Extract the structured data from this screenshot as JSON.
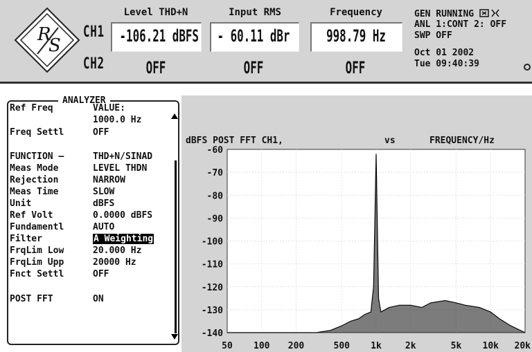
{
  "header": {
    "ch1_label": "CH1",
    "ch2_label": "CH2",
    "meas1": {
      "head": "Level THD+N",
      "ch1": "-106.21 dBFS",
      "ch2": "OFF"
    },
    "meas2": {
      "head": "Input RMS",
      "ch1": "- 60.11 dBr",
      "ch2": "OFF"
    },
    "meas3": {
      "head": "Frequency",
      "ch1": "998.79  Hz",
      "ch2": "OFF"
    },
    "status": {
      "line1": "GEN RUNNING",
      "line2": "ANL 1:CONT 2: OFF",
      "line3": "SWP OFF",
      "line4": "Oct 01 2002",
      "line5": "Tue 09:40:39"
    }
  },
  "analyzer": {
    "title": "ANALYZER",
    "rows": [
      {
        "k": "Ref Freq",
        "v": "VALUE:"
      },
      {
        "k": "",
        "v": "1000.0 Hz"
      },
      {
        "k": "Freq Settl",
        "v": "OFF"
      },
      {
        "k": "FUNCTION –",
        "v": "THD+N/SINAD"
      },
      {
        "k": "Meas Mode",
        "v": "LEVEL THDN"
      },
      {
        "k": "Rejection",
        "v": "NARROW"
      },
      {
        "k": "Meas Time",
        "v": "SLOW"
      },
      {
        "k": "Unit",
        "v": "dBFS"
      },
      {
        "k": "Ref Volt",
        "v": "0.0000 dBFS"
      },
      {
        "k": "Fundamentl",
        "v": "AUTO"
      },
      {
        "k": "Filter",
        "v": "A Weighting"
      },
      {
        "k": "FrqLim Low",
        "v": "20.000 Hz"
      },
      {
        "k": "FrqLim Upp",
        "v": "20000  Hz"
      },
      {
        "k": "Fnct Settl",
        "v": "OFF"
      },
      {
        "k": "POST FFT",
        "v": "ON"
      }
    ]
  },
  "graph": {
    "title_left": "dBFS POST FFT CH1,",
    "title_mid": "vs",
    "title_right": "FREQUENCY/Hz"
  },
  "chart_data": {
    "type": "line",
    "title": "dBFS POST FFT CH1,   vs   FREQUENCY/Hz",
    "xlabel": "FREQUENCY/Hz",
    "ylabel": "dBFS POST FFT CH1",
    "xscale": "log",
    "xlim": [
      50,
      20000
    ],
    "ylim": [
      -140,
      -60
    ],
    "grid": true,
    "y_ticks": [
      "-60",
      "-70",
      "-80",
      "-90",
      "-100",
      "-110",
      "-120",
      "-130",
      "-140"
    ],
    "x_ticks": [
      "50",
      "100",
      "200",
      "500",
      "1k",
      "2k",
      "5k",
      "10k",
      "20k"
    ],
    "series": [
      {
        "x": [
          50,
          100,
          200,
          300,
          400,
          500,
          600,
          700,
          800,
          900,
          950,
          1000,
          1050,
          1100,
          1300,
          1600,
          2000,
          2500,
          3000,
          4000,
          5000,
          6000,
          8000,
          10000,
          12000,
          15000,
          20000
        ],
        "y": [
          -140,
          -140,
          -140,
          -140,
          -139,
          -137,
          -135,
          -134,
          -132,
          -131,
          -120,
          -62,
          -125,
          -131,
          -129,
          -128,
          -128,
          -129,
          -127,
          -126,
          -127,
          -128,
          -129,
          -131,
          -134,
          -137,
          -140
        ]
      }
    ]
  }
}
